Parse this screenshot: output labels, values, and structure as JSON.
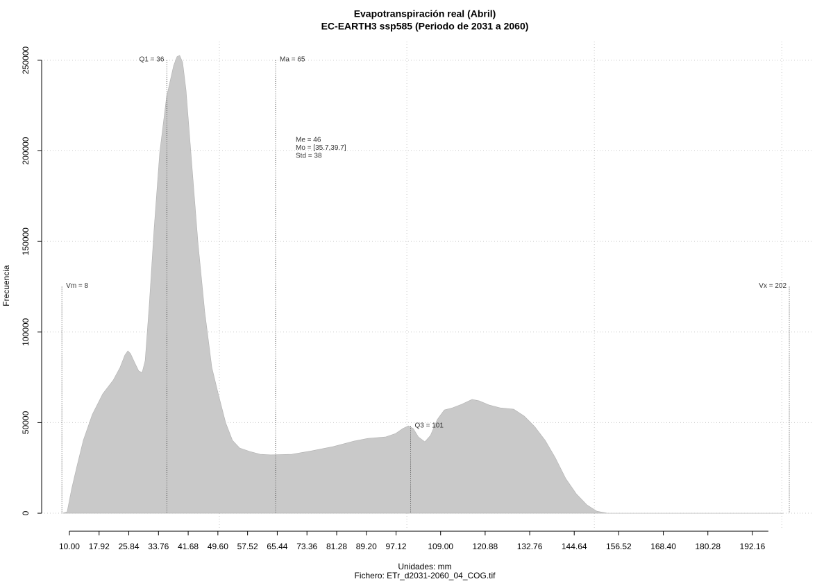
{
  "chart_data": {
    "type": "area",
    "title": "Evapotranspiración real (Abril)",
    "subtitle": "EC-EARTH3 ssp585 (Periodo de 2031 a 2060)",
    "x_label": "Unidades: mm",
    "caption": "Fichero: ETr_d2031-2060_04_COG.tif",
    "y_label": "Frecuencia",
    "color": "#c9c9c9",
    "x": [
      8.1,
      9.4,
      10.6,
      11.9,
      13.7,
      16.1,
      18.9,
      21.7,
      23.5,
      24.8,
      25.6,
      26.3,
      27.6,
      28.5,
      29.4,
      30.2,
      31.3,
      32.6,
      34.1,
      35.9,
      37.8,
      38.7,
      39.4,
      40.2,
      41.1,
      42.4,
      44.3,
      46.1,
      48.0,
      49.8,
      51.7,
      53.5,
      55.4,
      58.1,
      60.9,
      63.7,
      69.3,
      74.8,
      80.4,
      85.9,
      89.6,
      94.3,
      97.0,
      98.9,
      100.4,
      101.7,
      103.1,
      104.8,
      106.3,
      108.1,
      110.0,
      112.2,
      114.6,
      117.4,
      119.3,
      122.0,
      124.8,
      128.5,
      131.3,
      134.1,
      136.9,
      139.6,
      142.4,
      145.2,
      148.0,
      150.7,
      153.5,
      200.4
    ],
    "values": [
      0,
      800,
      13400,
      24900,
      40200,
      54400,
      65900,
      73500,
      80400,
      87300,
      89600,
      88100,
      82300,
      78500,
      77700,
      84200,
      114900,
      157000,
      199100,
      229700,
      247000,
      252000,
      252700,
      248900,
      233500,
      199100,
      149300,
      111000,
      80400,
      65100,
      49800,
      40200,
      36000,
      34100,
      32500,
      32200,
      32500,
      34500,
      36800,
      39800,
      41300,
      42100,
      44000,
      46700,
      48200,
      46700,
      42100,
      39400,
      42900,
      51700,
      57000,
      58200,
      60100,
      62800,
      62000,
      59700,
      58200,
      57400,
      53600,
      47800,
      40200,
      30600,
      19100,
      10700,
      4600,
      1100,
      0,
      0
    ],
    "xlim": [
      2.6,
      208.1
    ],
    "ylim": [
      -8400,
      260300
    ],
    "xticks": [
      {
        "value": 10,
        "label": "10.00"
      },
      17.92,
      25.84,
      33.76,
      41.68,
      {
        "value": 49.6,
        "label": "49.60"
      },
      57.52,
      65.44,
      73.36,
      81.28,
      {
        "value": 89.2,
        "label": "89.20"
      },
      97.12,
      {
        "value": 109,
        "label": "109.00"
      },
      120.88,
      132.76,
      144.64,
      156.52,
      {
        "value": 168.4,
        "label": "168.40"
      },
      180.28,
      192.16
    ],
    "yticks": [
      0,
      50000,
      100000,
      150000,
      200000,
      250000
    ],
    "xgrid": [
      50,
      100,
      150,
      200
    ],
    "grid": true,
    "markers": [
      {
        "label": "Vm = 8",
        "x": 8,
        "top": 125000,
        "side": "right"
      },
      {
        "label": "Q1 = 36",
        "x": 36,
        "top": 250000,
        "side": "left"
      },
      {
        "label": "Ma = 65",
        "x": 65,
        "top": 250000,
        "side": "right"
      },
      {
        "label": "Q3 = 101",
        "x": 101,
        "top": 48000,
        "side": "right"
      },
      {
        "label": "Vx = 202",
        "x": 202,
        "top": 125000,
        "side": "left"
      }
    ],
    "stats": [
      "Me = 46",
      "Mo = [35.7,39.7]",
      "Std = 38"
    ]
  }
}
